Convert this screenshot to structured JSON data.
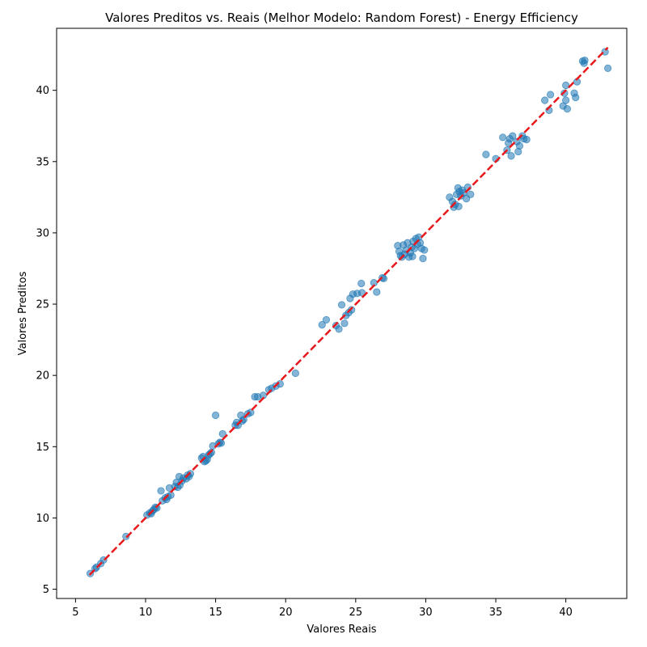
{
  "chart_data": {
    "type": "scatter",
    "title": "Valores Preditos vs. Reais (Melhor Modelo: Random Forest) - Energy Efficiency",
    "xlabel": "Valores Reais",
    "ylabel": "Valores Preditos",
    "xlim": [
      3.65,
      44.35
    ],
    "ylim": [
      4.35,
      44.35
    ],
    "xticks": [
      5,
      10,
      15,
      20,
      25,
      30,
      35,
      40
    ],
    "yticks": [
      5,
      10,
      15,
      20,
      25,
      30,
      35,
      40
    ],
    "grid": false,
    "point_color": "#1f77b4",
    "line_color": "#e8191d",
    "reference_line": {
      "style": "dashed",
      "x": [
        6.0,
        43.0
      ],
      "y": [
        6.0,
        43.0
      ]
    },
    "points": [
      [
        6.05,
        6.1
      ],
      [
        6.4,
        6.45
      ],
      [
        6.5,
        6.55
      ],
      [
        6.8,
        6.8
      ],
      [
        7.0,
        7.05
      ],
      [
        8.6,
        8.7
      ],
      [
        10.1,
        10.2
      ],
      [
        10.3,
        10.35
      ],
      [
        10.4,
        10.3
      ],
      [
        10.5,
        10.5
      ],
      [
        10.6,
        10.6
      ],
      [
        10.7,
        10.75
      ],
      [
        10.8,
        10.7
      ],
      [
        11.1,
        11.9
      ],
      [
        11.2,
        11.2
      ],
      [
        11.4,
        11.4
      ],
      [
        11.5,
        11.3
      ],
      [
        11.6,
        11.5
      ],
      [
        11.7,
        12.1
      ],
      [
        11.8,
        11.6
      ],
      [
        12.1,
        12.2
      ],
      [
        12.2,
        12.5
      ],
      [
        12.3,
        12.15
      ],
      [
        12.4,
        12.9
      ],
      [
        12.45,
        12.3
      ],
      [
        12.6,
        12.6
      ],
      [
        12.7,
        12.8
      ],
      [
        12.9,
        12.75
      ],
      [
        13.0,
        13.0
      ],
      [
        13.1,
        12.9
      ],
      [
        13.2,
        13.1
      ],
      [
        14.0,
        14.2
      ],
      [
        14.1,
        14.3
      ],
      [
        14.2,
        13.95
      ],
      [
        14.3,
        14.0
      ],
      [
        14.4,
        14.1
      ],
      [
        14.5,
        14.4
      ],
      [
        14.6,
        14.5
      ],
      [
        14.7,
        14.6
      ],
      [
        14.8,
        15.05
      ],
      [
        15.0,
        17.2
      ],
      [
        15.2,
        15.2
      ],
      [
        15.3,
        15.3
      ],
      [
        15.4,
        15.25
      ],
      [
        15.5,
        15.9
      ],
      [
        16.4,
        16.5
      ],
      [
        16.5,
        16.7
      ],
      [
        16.6,
        16.5
      ],
      [
        16.8,
        17.2
      ],
      [
        16.9,
        16.8
      ],
      [
        17.0,
        16.9
      ],
      [
        17.3,
        17.3
      ],
      [
        17.5,
        17.4
      ],
      [
        17.8,
        18.5
      ],
      [
        18.0,
        18.5
      ],
      [
        18.4,
        18.6
      ],
      [
        18.8,
        19.0
      ],
      [
        19.0,
        19.1
      ],
      [
        19.3,
        19.25
      ],
      [
        19.6,
        19.4
      ],
      [
        20.7,
        20.15
      ],
      [
        22.6,
        23.55
      ],
      [
        22.9,
        23.9
      ],
      [
        23.6,
        23.5
      ],
      [
        23.8,
        23.25
      ],
      [
        24.0,
        24.95
      ],
      [
        24.2,
        23.65
      ],
      [
        24.3,
        24.2
      ],
      [
        24.5,
        24.4
      ],
      [
        24.6,
        25.4
      ],
      [
        24.7,
        24.6
      ],
      [
        24.8,
        25.7
      ],
      [
        25.1,
        25.75
      ],
      [
        25.4,
        26.45
      ],
      [
        25.45,
        25.8
      ],
      [
        26.3,
        26.5
      ],
      [
        26.5,
        25.85
      ],
      [
        26.9,
        26.85
      ],
      [
        27.0,
        26.8
      ],
      [
        28.0,
        29.1
      ],
      [
        28.1,
        28.7
      ],
      [
        28.2,
        28.4
      ],
      [
        28.3,
        28.3
      ],
      [
        28.4,
        29.15
      ],
      [
        28.5,
        28.5
      ],
      [
        28.6,
        28.8
      ],
      [
        28.7,
        29.3
      ],
      [
        28.8,
        28.3
      ],
      [
        28.9,
        28.6
      ],
      [
        29.0,
        29.0
      ],
      [
        29.05,
        28.35
      ],
      [
        29.1,
        29.4
      ],
      [
        29.2,
        28.9
      ],
      [
        29.3,
        29.6
      ],
      [
        29.4,
        29.2
      ],
      [
        29.5,
        29.7
      ],
      [
        29.6,
        29.3
      ],
      [
        29.7,
        28.9
      ],
      [
        29.8,
        28.2
      ],
      [
        29.9,
        28.8
      ],
      [
        31.7,
        32.5
      ],
      [
        31.9,
        32.2
      ],
      [
        32.0,
        31.8
      ],
      [
        32.1,
        32.0
      ],
      [
        32.2,
        32.7
      ],
      [
        32.3,
        33.15
      ],
      [
        32.35,
        31.85
      ],
      [
        32.4,
        32.9
      ],
      [
        32.5,
        32.6
      ],
      [
        32.6,
        33.0
      ],
      [
        32.7,
        32.8
      ],
      [
        32.9,
        32.4
      ],
      [
        33.0,
        33.2
      ],
      [
        33.2,
        32.7
      ],
      [
        34.3,
        35.5
      ],
      [
        35.0,
        35.2
      ],
      [
        35.5,
        36.7
      ],
      [
        35.8,
        35.8
      ],
      [
        35.9,
        36.3
      ],
      [
        36.0,
        36.6
      ],
      [
        36.1,
        35.4
      ],
      [
        36.2,
        36.8
      ],
      [
        36.5,
        36.4
      ],
      [
        36.6,
        35.7
      ],
      [
        36.7,
        36.1
      ],
      [
        36.9,
        36.8
      ],
      [
        37.0,
        36.6
      ],
      [
        37.2,
        36.55
      ],
      [
        38.5,
        39.3
      ],
      [
        38.8,
        38.6
      ],
      [
        38.9,
        39.7
      ],
      [
        39.8,
        38.9
      ],
      [
        39.9,
        39.8
      ],
      [
        40.0,
        39.3
      ],
      [
        40.0,
        40.35
      ],
      [
        40.1,
        38.7
      ],
      [
        40.6,
        39.8
      ],
      [
        40.7,
        39.5
      ],
      [
        40.8,
        40.6
      ],
      [
        41.2,
        42.05
      ],
      [
        41.3,
        41.9
      ],
      [
        41.35,
        42.1
      ],
      [
        42.8,
        42.7
      ],
      [
        43.0,
        41.55
      ]
    ]
  }
}
